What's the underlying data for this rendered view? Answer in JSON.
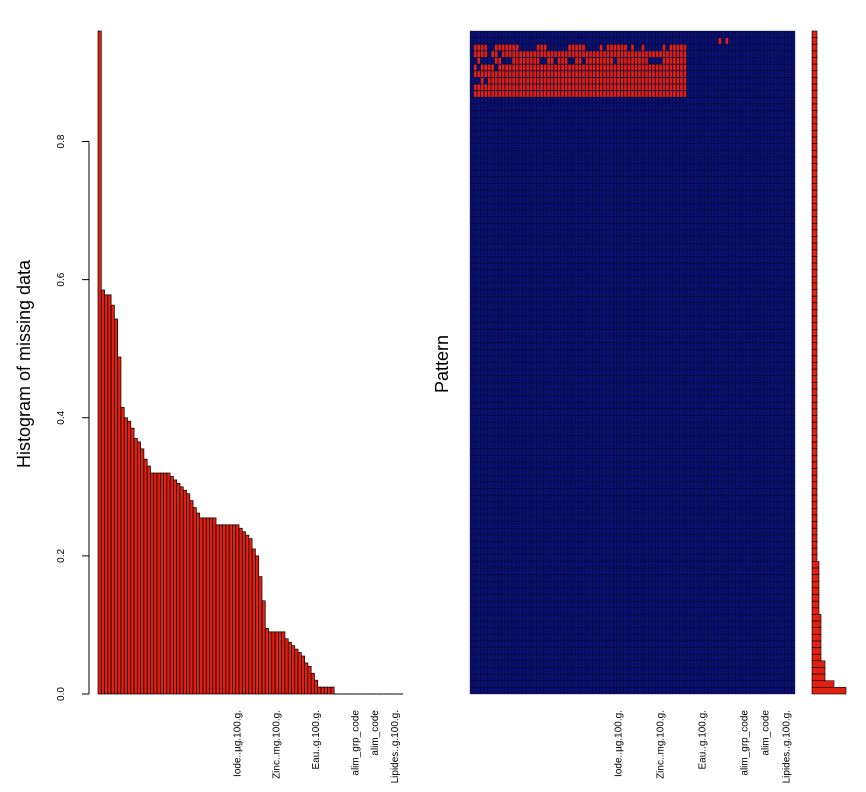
{
  "colors": {
    "missing": "#e02010",
    "observed": "#0a1070",
    "outline": "#000000",
    "axis": "#000000"
  },
  "chart_data": [
    {
      "type": "bar",
      "ylabel": "Histogram of missing data",
      "ylim": [
        0,
        0.96
      ],
      "yticks": [
        "0.0",
        "0.2",
        "0.4",
        "0.6",
        "0.8"
      ],
      "ytick_values": [
        0,
        0.2,
        0.4,
        0.6,
        0.8
      ],
      "grid": false,
      "tick_labels": [
        {
          "label": "Iode..µg.100.g.",
          "index": 42
        },
        {
          "label": "Zinc..mg.100.g.",
          "index": 54
        },
        {
          "label": "Eau..g.100.g.",
          "index": 66
        },
        {
          "label": "alim_grp_code",
          "index": 78
        },
        {
          "label": "alim_code",
          "index": 84
        },
        {
          "label": "Lipides..g.100.g.",
          "index": 90
        }
      ],
      "values": [
        0.96,
        0.585,
        0.578,
        0.578,
        0.563,
        0.543,
        0.488,
        0.415,
        0.4,
        0.395,
        0.385,
        0.37,
        0.365,
        0.355,
        0.34,
        0.33,
        0.32,
        0.32,
        0.32,
        0.32,
        0.32,
        0.32,
        0.315,
        0.31,
        0.305,
        0.3,
        0.295,
        0.29,
        0.28,
        0.27,
        0.262,
        0.255,
        0.255,
        0.255,
        0.255,
        0.255,
        0.245,
        0.245,
        0.245,
        0.245,
        0.245,
        0.245,
        0.245,
        0.24,
        0.235,
        0.23,
        0.225,
        0.21,
        0.2,
        0.17,
        0.135,
        0.095,
        0.09,
        0.09,
        0.09,
        0.09,
        0.09,
        0.08,
        0.075,
        0.07,
        0.065,
        0.06,
        0.055,
        0.045,
        0.04,
        0.03,
        0.02,
        0.01,
        0.01,
        0.01,
        0.01,
        0.01,
        0,
        0,
        0,
        0,
        0,
        0,
        0,
        0,
        0,
        0,
        0,
        0,
        0,
        0,
        0,
        0,
        0,
        0,
        0,
        0,
        0
      ]
    },
    {
      "type": "heatmap",
      "ylabel": "Pattern",
      "legend": "none",
      "tick_labels": [
        {
          "label": "Iode..µg.100.g.",
          "col": 42
        },
        {
          "label": "Zinc..mg.100.g.",
          "col": 54
        },
        {
          "label": "Eau..g.100.g.",
          "col": 66
        },
        {
          "label": "alim_grp_code",
          "col": 78
        },
        {
          "label": "alim_code",
          "col": 84
        },
        {
          "label": "Lipides..g.100.g.",
          "col": 90
        }
      ],
      "n_cols": 93,
      "n_rows": 100,
      "missing_in_row_top_to_bottom": "[] [71,73] [1,2,3,4,7,8,9,10,11,12,13,19,20,21,28,29,30,31,32,37,39,40,41,42,43,44,46,49,55,57,58,59,60,61] [1,2,3,4,6,7,9,10,11,12,13,14,15,16,17,18,19,20,21,22,23,24,25,26,27,28,29,30,31,32,33,34,35,36,37,38,39,40,41,42,43,44,45,46,47,48,49,50,51,52,53,54,55,56,57,58,59,60,61] [2,7,8,12,13,14,15,16,17,18,19,22,23,25,26,27,30,31,33,34,35,36,37,38,39,40,42,43,44,45,46,47,48,49,50,55,56,57,58,59,60,61] [1,3,4,5,6,8,9,10,11,12,13,14,15,16,17,18,19,20,21,22,23,24,25,26,27,28,29,30,31,32,33,34,35,36,37,38,39,40,41,42,43,44,45,46,47,48,49,50,51,52,53,54,55,56,57,58,59,60,61] [1,2,3,4,5,6,7,8,9,10,11,12,13,14,15,16,17,18,19,20,21,22,23,24,25,26,27,28,29,30,31,32,33,34,35,36,37,38,39,40,41,42,43,44,45,46,47,48,49,50,51,52,53,54,55,56,57,58,59,60,61] [3,5,6,7,8,9,10,11,12,13,14,15,16,17,18,19,20,21,22,23,24,25,26,27,28,29,30,31,32,33,34,35,36,37,38,39,40,41,42,43,44,45,46,47,48,49,50,51,52,53,54,55,56,57,58,59,60,61] [1,2,3,4,5,6,7,8,9,10,11,12,13,14,15,16,17,18,19,20,21,22,23,24,25,26,27,28,29,30,31,32,33,34,35,36,37,38,39,40,41,42,43,44,45,46,47,48,49,50,51,52,53,54,55,56,57,58,59,60,61] [1,2,3,4,5,6,7,8,9,10,11,12,13,14,15,16,17,18,19,20,21,22,23,24,25,26,27,28,29,30,31,32,33,34,35,36,37,38,39,40,41,42,43,44,45,46,47,48,49,50,51,52,53,54,55,56,57,58,59,60,61] []"
    },
    {
      "type": "bar",
      "orientation": "horizontal",
      "legend": "none"
    }
  ]
}
